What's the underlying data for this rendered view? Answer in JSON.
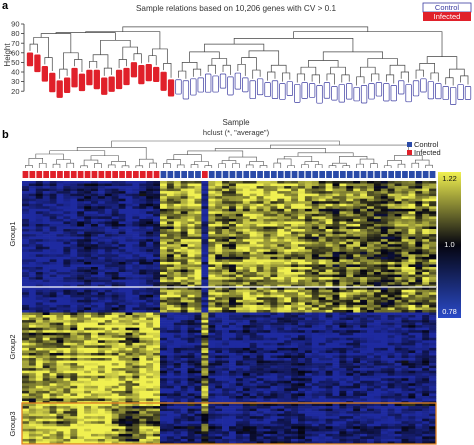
{
  "panel_a": {
    "letter": "a",
    "title": "Sample relations based on 10,206 genes with CV > 0.1",
    "ylabel": "Height",
    "legend": [
      {
        "label": "Control",
        "style": "outline",
        "color": "#3a3aa0"
      },
      {
        "label": "Infected",
        "style": "filled",
        "color": "#e0202a"
      }
    ],
    "dendrogram_leaf_label_text": "illegible"
  },
  "panel_b": {
    "letter": "b",
    "title": "Sample",
    "subtitle": "hclust (*, \"average\")",
    "legend": [
      {
        "label": "Control",
        "color": "#2a4aa8"
      },
      {
        "label": "Infected",
        "color": "#e0202a"
      }
    ],
    "groups": [
      "Group1",
      "Group2",
      "Group3"
    ],
    "color_scale": {
      "max_label": "1.22",
      "mid_label": "1.0",
      "min_label": "0.78"
    }
  },
  "colors": {
    "control": "#3a3aa0",
    "infected": "#e0202a",
    "heat_low": "#1e2aa0",
    "heat_mid": "#050510",
    "heat_high": "#f0f050",
    "group3_box": "#e08020"
  },
  "chart_data": [
    {
      "type": "dendrogram",
      "title": "Sample relations based on 10,206 genes with CV > 0.1",
      "ylabel": "Height",
      "ylim": [
        15,
        90
      ],
      "yticks": [
        20,
        30,
        40,
        50,
        60,
        70,
        80,
        90
      ],
      "legend_position": "top-right",
      "root_height": 87,
      "clusters": [
        {
          "name": "Infected",
          "leaf_count": 20,
          "merge_height": 80,
          "leaf_heights": [
            62,
            60,
            48,
            41,
            33,
            36,
            46,
            40,
            44,
            44,
            36,
            37,
            44,
            46,
            52,
            49,
            50,
            47,
            42,
            34
          ]
        },
        {
          "name": "Control",
          "leaf_count": 40,
          "merge_height": 82,
          "leaf_heights": [
            34,
            33,
            35,
            36,
            40,
            38,
            40,
            37,
            41,
            36,
            33,
            35,
            31,
            33,
            30,
            32,
            29,
            31,
            30,
            28,
            31,
            27,
            29,
            30,
            26,
            28,
            30,
            31,
            30,
            28,
            33,
            29,
            33,
            35,
            32,
            30,
            27,
            26,
            29,
            27
          ]
        }
      ]
    },
    {
      "type": "heatmap",
      "title": "Sample",
      "subtitle": "hclust (*, \"average\")",
      "legend_position": "top-right",
      "color_scale": {
        "min": 0.78,
        "mid": 1.0,
        "max": 1.22
      },
      "columns": {
        "count": 60,
        "classes": [
          "Infected",
          "Infected",
          "Infected",
          "Infected",
          "Infected",
          "Infected",
          "Infected",
          "Infected",
          "Infected",
          "Infected",
          "Infected",
          "Infected",
          "Infected",
          "Infected",
          "Infected",
          "Infected",
          "Infected",
          "Infected",
          "Infected",
          "Infected",
          "Control",
          "Control",
          "Control",
          "Control",
          "Control",
          "Control",
          "Infected",
          "Control",
          "Control",
          "Control",
          "Control",
          "Control",
          "Control",
          "Control",
          "Control",
          "Control",
          "Control",
          "Control",
          "Control",
          "Control",
          "Control",
          "Control",
          "Control",
          "Control",
          "Control",
          "Control",
          "Control",
          "Control",
          "Control",
          "Control",
          "Control",
          "Control",
          "Control",
          "Control",
          "Control",
          "Control",
          "Control",
          "Control",
          "Control",
          "Control"
        ]
      },
      "row_groups": [
        {
          "name": "Group1",
          "row_fraction": 0.5,
          "pattern": {
            "Infected": "low",
            "Control": "high"
          }
        },
        {
          "name": "Group2",
          "row_fraction": 0.34,
          "pattern": {
            "Infected": "high",
            "Control": "low"
          }
        },
        {
          "name": "Group3",
          "row_fraction": 0.16,
          "pattern": {
            "Infected": "very high",
            "Control": "low"
          },
          "highlighted": true
        }
      ]
    }
  ]
}
